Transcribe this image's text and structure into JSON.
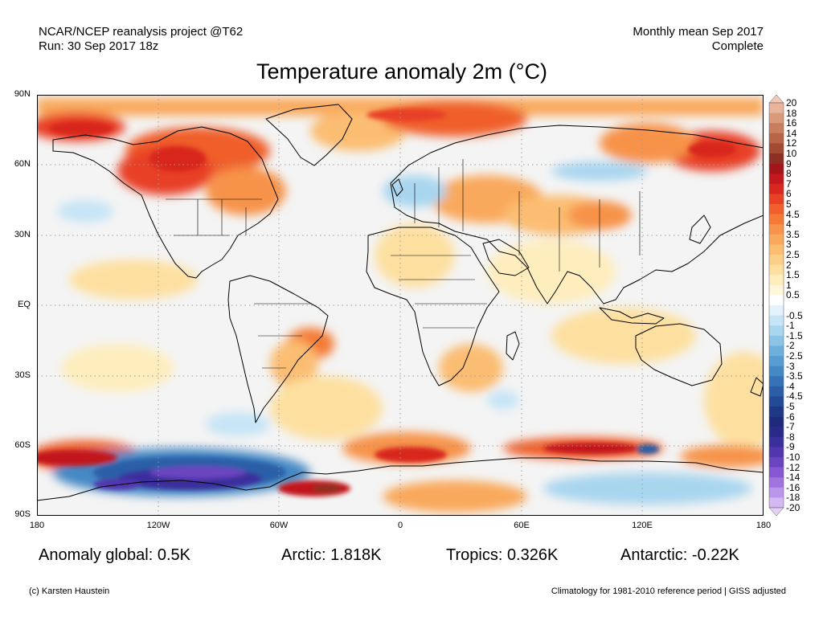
{
  "header": {
    "left_line1": "NCAR/NCEP reanalysis project @T62",
    "left_line2": "Run: 30 Sep 2017 18z",
    "right_line1": "Monthly mean Sep 2017",
    "right_line2": "Complete"
  },
  "title": "Temperature anomaly 2m (°C)",
  "lat_labels": [
    "90N",
    "60N",
    "30N",
    "EQ",
    "30S",
    "60S",
    "90S"
  ],
  "lon_labels": [
    "180",
    "120W",
    "60W",
    "0",
    "60E",
    "120E",
    "180"
  ],
  "colorbar": {
    "labels": [
      "20",
      "18",
      "16",
      "14",
      "12",
      "10",
      "9",
      "8",
      "7",
      "6",
      "5",
      "4.5",
      "4",
      "3.5",
      "3",
      "2.5",
      "2",
      "1.5",
      "1",
      "0.5",
      "-0.5",
      "-1",
      "-1.5",
      "-2",
      "-2.5",
      "-3",
      "-3.5",
      "-4",
      "-4.5",
      "-5",
      "-6",
      "-7",
      "-8",
      "-9",
      "-10",
      "-12",
      "-14",
      "-16",
      "-18",
      "-20"
    ],
    "colors_warm": [
      "#e8b49b",
      "#d9997b",
      "#c97e5f",
      "#b86447",
      "#a34a33",
      "#8c3024",
      "#a3141b",
      "#c2181e",
      "#d8271f",
      "#e84125",
      "#f05f2c",
      "#f47a36",
      "#f7934a",
      "#f9a95c",
      "#fbbd72",
      "#fccf88",
      "#fde0a0",
      "#feedbd",
      "#fff7dc"
    ],
    "colors_cold": [
      "#e4f2fb",
      "#c6e5f6",
      "#a9d6ef",
      "#8bc4e6",
      "#6eb0dc",
      "#579dd1",
      "#4488c4",
      "#3672b6",
      "#2b5ea7",
      "#234a97",
      "#1f3886",
      "#1f2b7a",
      "#2a2a8a",
      "#3b2f9c",
      "#5236ae",
      "#6a44c0",
      "#8557d0",
      "#a173de",
      "#bb95e9",
      "#d3b8f2"
    ]
  },
  "stats": {
    "global": "Anomaly global: 0.5K",
    "arctic": "Arctic: 1.818K",
    "tropics": "Tropics: 0.326K",
    "antarctic": "Antarctic: -0.22K"
  },
  "footer": {
    "left": "(c) Karsten Haustein",
    "right": "Climatology for 1981-2010 reference period | GISS adjusted"
  }
}
